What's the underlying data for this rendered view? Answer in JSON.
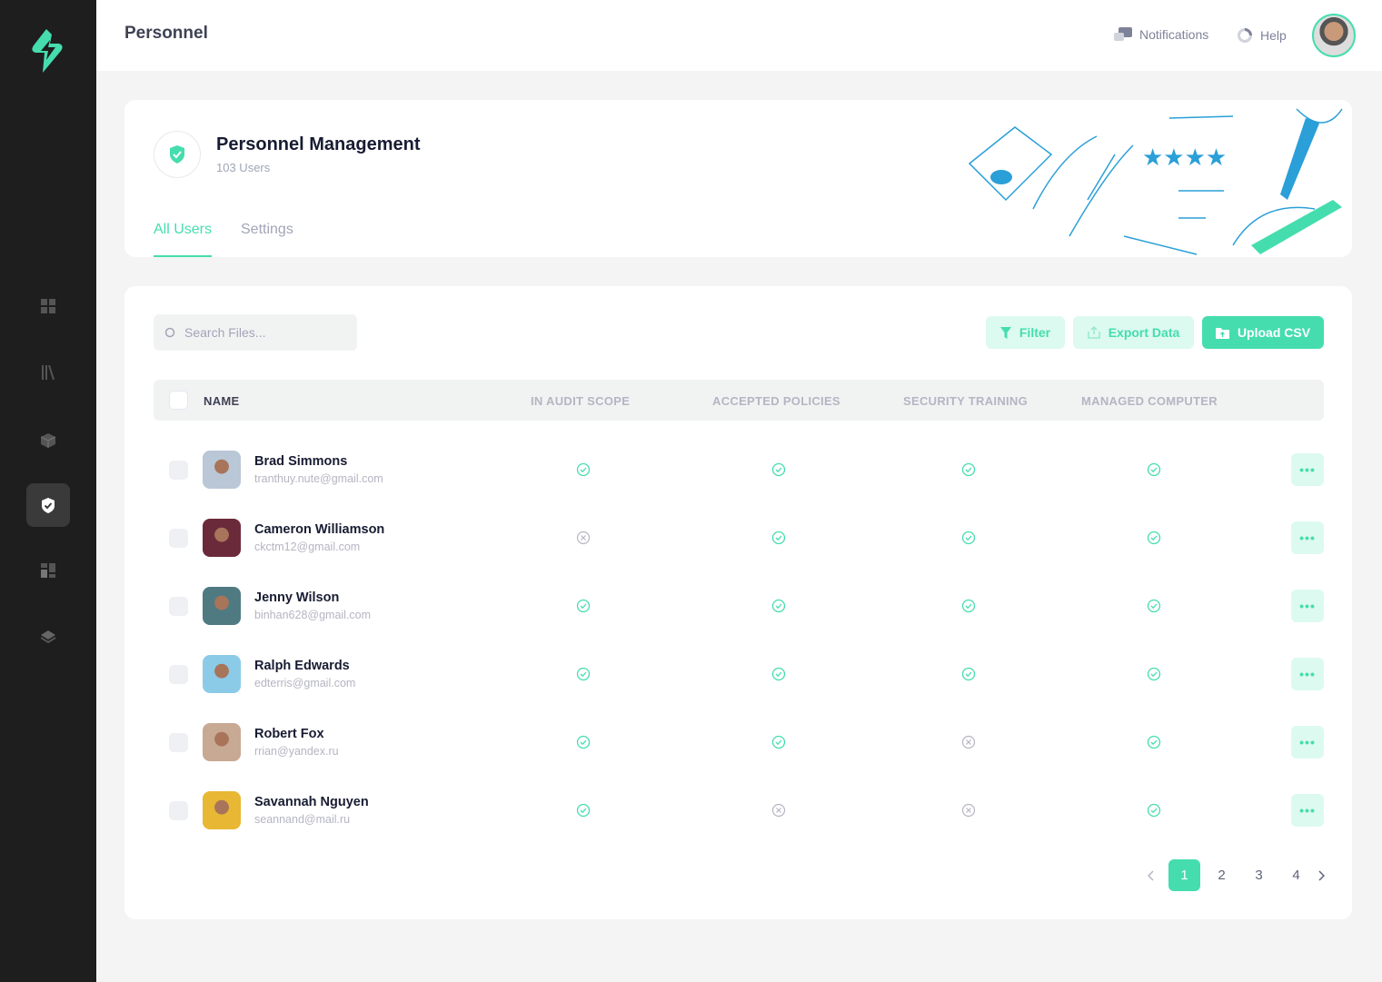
{
  "colors": {
    "accent": "#45DDAE",
    "sidebar": "#1E1E1E"
  },
  "header": {
    "title": "Personnel",
    "notifications": "Notifications",
    "help": "Help"
  },
  "sidebar": {
    "items": [
      "dashboard-icon",
      "library-icon",
      "cube-icon",
      "shield-icon",
      "layout-icon",
      "layers-icon"
    ],
    "active": 3
  },
  "hero": {
    "title": "Personnel Management",
    "subtitle": "103 Users",
    "tabs": [
      {
        "label": "All Users",
        "active": true
      },
      {
        "label": "Settings",
        "active": false
      }
    ]
  },
  "toolbar": {
    "search_placeholder": "Search Files...",
    "filter": "Filter",
    "export": "Export Data",
    "upload": "Upload CSV"
  },
  "table": {
    "columns": [
      "NAME",
      "IN AUDIT SCOPE",
      "ACCEPTED POLICIES",
      "SECURITY TRAINING",
      "MANAGED COMPUTER"
    ],
    "rows": [
      {
        "name": "Brad Simmons",
        "email": "tranthuy.nute@gmail.com",
        "status": [
          true,
          true,
          true,
          true
        ],
        "avatar": "#b9c7d6"
      },
      {
        "name": "Cameron Williamson",
        "email": "ckctm12@gmail.com",
        "status": [
          false,
          true,
          true,
          true
        ],
        "avatar": "#6b2a3a"
      },
      {
        "name": "Jenny Wilson",
        "email": "binhan628@gmail.com",
        "status": [
          true,
          true,
          true,
          true
        ],
        "avatar": "#4f7a82"
      },
      {
        "name": "Ralph Edwards",
        "email": "edterris@gmail.com",
        "status": [
          true,
          true,
          true,
          true
        ],
        "avatar": "#8ccbe8"
      },
      {
        "name": "Robert Fox",
        "email": "rrian@yandex.ru",
        "status": [
          true,
          true,
          false,
          true
        ],
        "avatar": "#c8a993"
      },
      {
        "name": "Savannah Nguyen",
        "email": "seannand@mail.ru",
        "status": [
          true,
          false,
          false,
          true
        ],
        "avatar": "#e8b734"
      }
    ],
    "more_label": "•••"
  },
  "pagination": {
    "pages": [
      "1",
      "2",
      "3",
      "4"
    ],
    "current": "1"
  }
}
